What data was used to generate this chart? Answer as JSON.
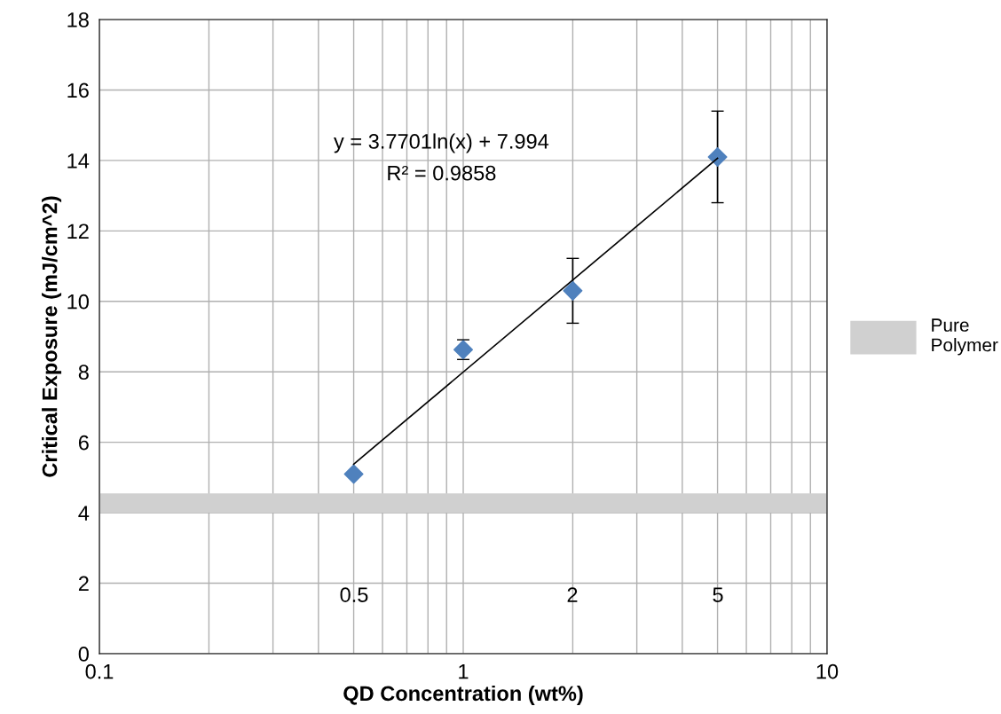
{
  "chart_data": {
    "type": "scatter",
    "xlabel": "QD Concentration (wt%)",
    "ylabel": "Critical Exposure (mJ/cm^2)",
    "log": "x",
    "xlim": [
      0.1,
      10
    ],
    "ylim": [
      0,
      18
    ],
    "xticks": [
      {
        "value": 0.1,
        "label": "0.1"
      },
      {
        "value": 0.2,
        "label": null
      },
      {
        "value": 0.3,
        "label": null
      },
      {
        "value": 0.4,
        "label": null
      },
      {
        "value": 0.5,
        "label": null
      },
      {
        "value": 0.6,
        "label": null
      },
      {
        "value": 0.7,
        "label": null
      },
      {
        "value": 0.8,
        "label": null
      },
      {
        "value": 0.9,
        "label": null
      },
      {
        "value": 1,
        "label": "1"
      },
      {
        "value": 2,
        "label": null
      },
      {
        "value": 3,
        "label": null
      },
      {
        "value": 4,
        "label": null
      },
      {
        "value": 5,
        "label": null
      },
      {
        "value": 6,
        "label": null
      },
      {
        "value": 7,
        "label": null
      },
      {
        "value": 8,
        "label": null
      },
      {
        "value": 9,
        "label": null
      },
      {
        "value": 10,
        "label": "10"
      }
    ],
    "yticks": [
      0,
      2,
      4,
      6,
      8,
      10,
      12,
      14,
      16,
      18
    ],
    "grid": true,
    "legend": "right",
    "series": [
      {
        "marker": "diamond",
        "color": "#4f81bd",
        "x": [
          0.5,
          1,
          2,
          5
        ],
        "values": [
          5.1,
          8.63,
          10.3,
          14.1
        ],
        "errors": [
          null,
          0.28,
          0.92,
          1.3
        ]
      },
      {
        "type": "line",
        "marker": "none",
        "color": "#000000",
        "x": [
          0.5,
          5
        ],
        "values": [
          5.38,
          14.06
        ]
      }
    ],
    "bands": [
      {
        "axis": "y",
        "from": 4,
        "to": 4.55,
        "label": "Pure Polymer",
        "color": "#d0d0d0"
      }
    ],
    "annotations": [
      "y = 3.7701ln(x) + 7.994",
      "R² = 0.9858",
      "0.5",
      "2",
      "5"
    ]
  }
}
